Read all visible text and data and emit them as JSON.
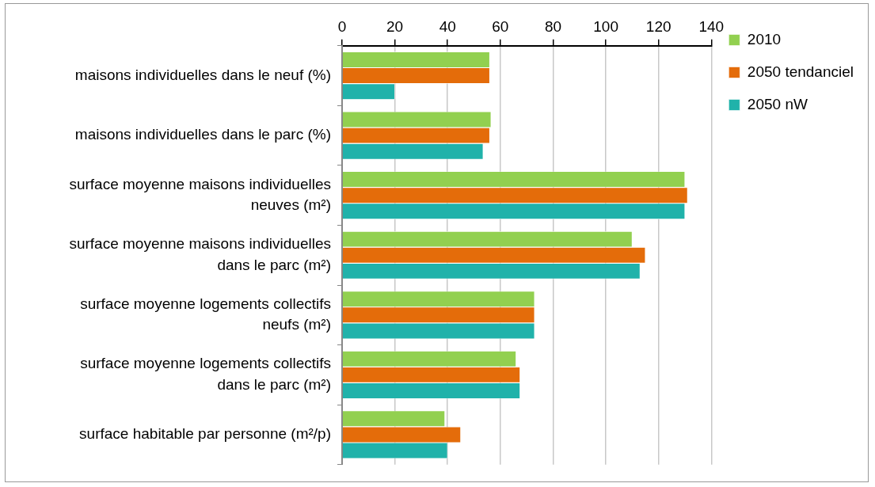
{
  "chart_data": {
    "type": "bar",
    "orientation": "horizontal",
    "categories": [
      "maisons individuelles dans le neuf (%)",
      "maisons individuelles dans le parc (%)",
      "surface moyenne maisons individuelles neuves (m²)",
      "surface moyenne maisons individuelles dans le parc (m²)",
      "surface moyenne logements collectifs neufs (m²)",
      "surface moyenne logements collectifs dans le parc (m²)",
      "surface habitable par personne (m²/p)"
    ],
    "series": [
      {
        "name": "2010",
        "color": "#92d050",
        "values": [
          56,
          56.5,
          130,
          110,
          73,
          66,
          39
        ]
      },
      {
        "name": "2050 tendanciel",
        "color": "#e46c0a",
        "values": [
          56,
          56,
          131,
          115,
          73,
          67.5,
          45
        ]
      },
      {
        "name": "2050 nW",
        "color": "#20b2aa",
        "values": [
          20,
          53.5,
          130,
          113,
          73,
          67.5,
          40
        ]
      }
    ],
    "xlim": [
      0,
      140
    ],
    "xticks": [
      0,
      20,
      40,
      60,
      80,
      100,
      120,
      140
    ],
    "grid": "x",
    "legend": "right"
  }
}
